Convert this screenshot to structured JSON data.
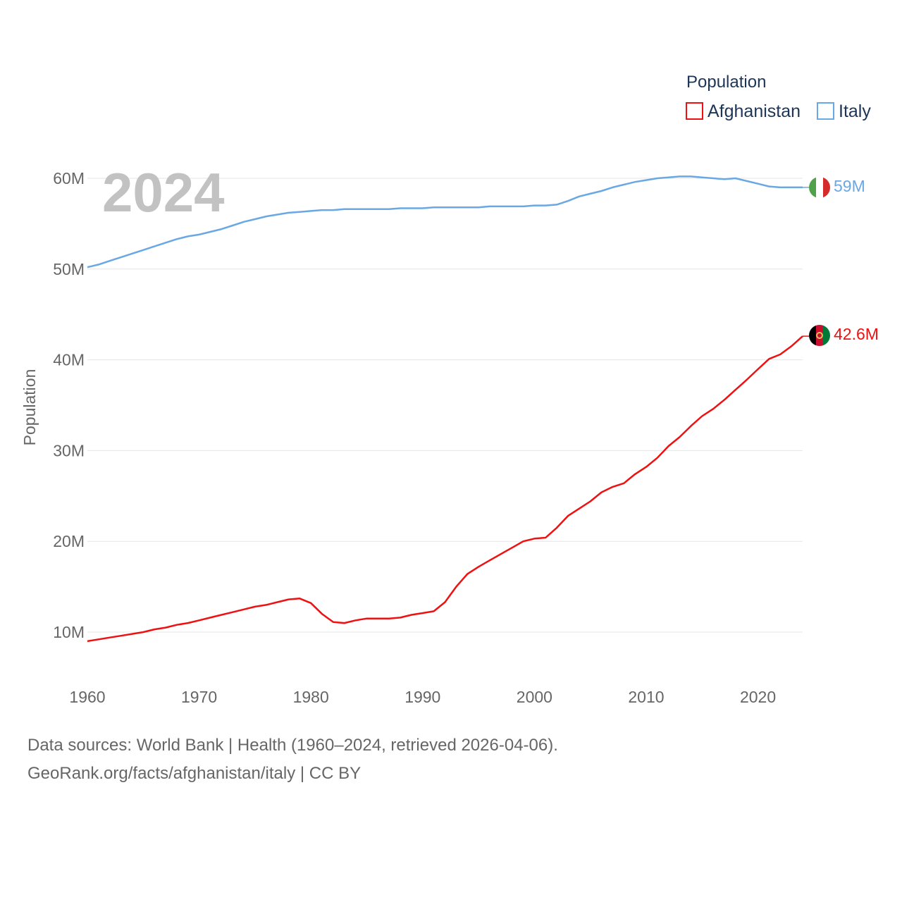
{
  "chart_data": {
    "type": "line",
    "title": "",
    "highlight_year": "2024",
    "xlabel": "",
    "ylabel": "Population",
    "xlim": [
      1960,
      2024
    ],
    "ylim": [
      5000000,
      65000000
    ],
    "x_ticks": [
      1960,
      1970,
      1980,
      1990,
      2000,
      2010,
      2020
    ],
    "y_ticks": [
      {
        "value": 10000000,
        "label": "10M"
      },
      {
        "value": 20000000,
        "label": "20M"
      },
      {
        "value": 30000000,
        "label": "30M"
      },
      {
        "value": 40000000,
        "label": "40M"
      },
      {
        "value": 50000000,
        "label": "50M"
      },
      {
        "value": 60000000,
        "label": "60M"
      }
    ],
    "grid": true,
    "legend": {
      "title": "Population",
      "position": "top-right"
    },
    "series": [
      {
        "name": "Afghanistan",
        "color": "#ee1111",
        "end_label": "42.6M",
        "flag": "afghanistan-flag",
        "x": [
          1960,
          1961,
          1962,
          1963,
          1964,
          1965,
          1966,
          1967,
          1968,
          1969,
          1970,
          1971,
          1972,
          1973,
          1974,
          1975,
          1976,
          1977,
          1978,
          1979,
          1980,
          1981,
          1982,
          1983,
          1984,
          1985,
          1986,
          1987,
          1988,
          1989,
          1990,
          1991,
          1992,
          1993,
          1994,
          1995,
          1996,
          1997,
          1998,
          1999,
          2000,
          2001,
          2002,
          2003,
          2004,
          2005,
          2006,
          2007,
          2008,
          2009,
          2010,
          2011,
          2012,
          2013,
          2014,
          2015,
          2016,
          2017,
          2018,
          2019,
          2020,
          2021,
          2022,
          2023,
          2024
        ],
        "values": [
          9.0,
          9.2,
          9.4,
          9.6,
          9.8,
          10.0,
          10.3,
          10.5,
          10.8,
          11.0,
          11.3,
          11.6,
          11.9,
          12.2,
          12.5,
          12.8,
          13.0,
          13.3,
          13.6,
          13.7,
          13.2,
          12.0,
          11.1,
          11.0,
          11.3,
          11.5,
          11.5,
          11.5,
          11.6,
          11.9,
          12.1,
          12.3,
          13.3,
          15.0,
          16.4,
          17.2,
          17.9,
          18.6,
          19.3,
          20.0,
          20.3,
          20.4,
          21.5,
          22.8,
          23.6,
          24.4,
          25.4,
          26.0,
          26.4,
          27.4,
          28.2,
          29.2,
          30.5,
          31.5,
          32.7,
          33.8,
          34.6,
          35.6,
          36.7,
          37.8,
          38.97,
          40.1,
          40.6,
          41.5,
          42.6
        ]
      },
      {
        "name": "Italy",
        "color": "#6aa8e4",
        "end_label": "59M",
        "flag": "italy-flag",
        "x": [
          1960,
          1961,
          1962,
          1963,
          1964,
          1965,
          1966,
          1967,
          1968,
          1969,
          1970,
          1971,
          1972,
          1973,
          1974,
          1975,
          1976,
          1977,
          1978,
          1979,
          1980,
          1981,
          1982,
          1983,
          1984,
          1985,
          1986,
          1987,
          1988,
          1989,
          1990,
          1991,
          1992,
          1993,
          1994,
          1995,
          1996,
          1997,
          1998,
          1999,
          2000,
          2001,
          2002,
          2003,
          2004,
          2005,
          2006,
          2007,
          2008,
          2009,
          2010,
          2011,
          2012,
          2013,
          2014,
          2015,
          2016,
          2017,
          2018,
          2019,
          2020,
          2021,
          2022,
          2023,
          2024
        ],
        "values": [
          50.2,
          50.5,
          50.9,
          51.3,
          51.7,
          52.1,
          52.5,
          52.9,
          53.3,
          53.6,
          53.8,
          54.1,
          54.4,
          54.8,
          55.2,
          55.5,
          55.8,
          56.0,
          56.2,
          56.3,
          56.4,
          56.5,
          56.5,
          56.6,
          56.6,
          56.6,
          56.6,
          56.6,
          56.7,
          56.7,
          56.7,
          56.8,
          56.8,
          56.8,
          56.8,
          56.8,
          56.9,
          56.9,
          56.9,
          56.9,
          57.0,
          57.0,
          57.1,
          57.5,
          58.0,
          58.3,
          58.6,
          59.0,
          59.3,
          59.6,
          59.8,
          60.0,
          60.1,
          60.2,
          60.2,
          60.1,
          60.0,
          59.9,
          60.0,
          59.7,
          59.4,
          59.1,
          59.0,
          59.0,
          59.0
        ]
      }
    ]
  },
  "footer": {
    "line1": "Data sources: World Bank | Health (1960–2024, retrieved 2026-04-06).",
    "line2": "GeoRank.org/facts/afghanistan/italy | CC BY"
  }
}
